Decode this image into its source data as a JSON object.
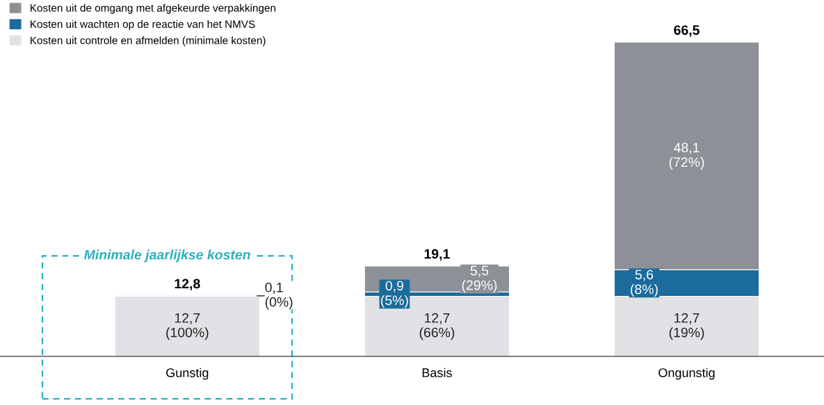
{
  "chart_data": {
    "type": "bar",
    "stacked": true,
    "categories": [
      "Gunstig",
      "Basis",
      "Ongunstig"
    ],
    "series": [
      {
        "name": "Kosten uit controle en afmelden (minimale kosten)",
        "color": "#e1e2e5",
        "values": [
          12.7,
          12.7,
          12.7
        ],
        "value_labels": [
          "12,7\n(100%)",
          "12,7\n(66%)",
          "12,7\n(19%)"
        ]
      },
      {
        "name": "Kosten uit wachten op de reactie van het NMVS",
        "color": "#1b6c9c",
        "values": [
          0.1,
          0.9,
          5.6
        ],
        "value_labels": [
          "0,1\n(0%)",
          "0,9\n(5%)",
          "5,6\n(8%)"
        ]
      },
      {
        "name": "Kosten uit de omgang met afgekeurde verpakkingen",
        "color": "#8d9197",
        "values": [
          null,
          5.5,
          48.1
        ],
        "value_labels": [
          null,
          "5,5\n(29%)",
          "48,1\n(72%)"
        ]
      }
    ],
    "totals": [
      "12,8",
      "19,1",
      "66,5"
    ],
    "annotations": [
      "Minimale jaarlijkse kosten"
    ],
    "legend": "top left",
    "grid": false
  }
}
